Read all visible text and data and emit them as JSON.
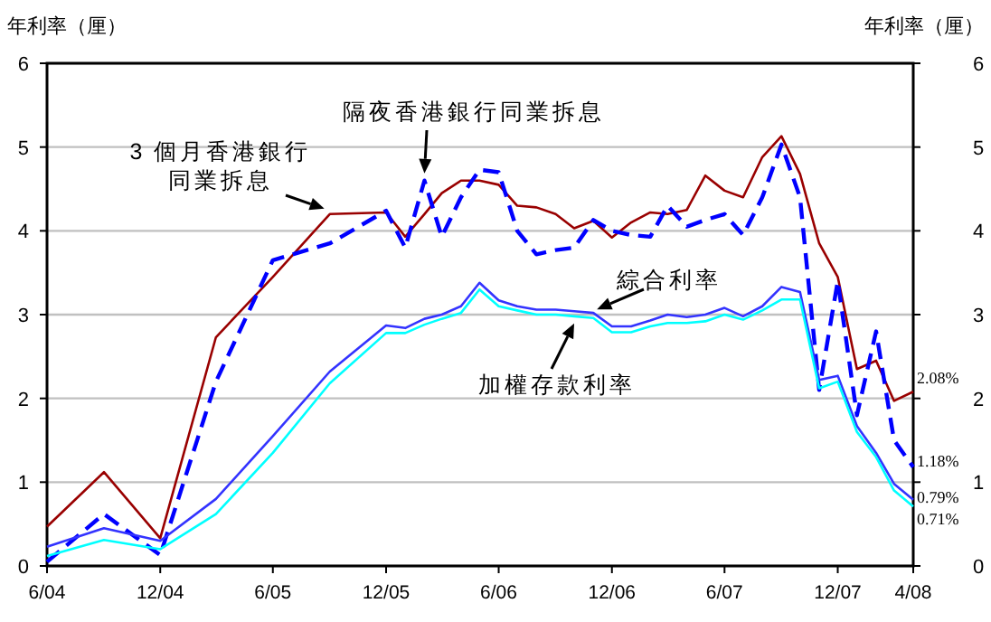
{
  "chart_data": {
    "type": "line",
    "ylabel": "年利率（厘）",
    "y2label": "年利率（厘）",
    "x": [
      "2004-06",
      "2004-09",
      "2004-12",
      "2005-03",
      "2005-06",
      "2005-09",
      "2005-12",
      "2006-01",
      "2006-02",
      "2006-03",
      "2006-04",
      "2006-05",
      "2006-06",
      "2006-07",
      "2006-08",
      "2006-09",
      "2006-10",
      "2006-11",
      "2006-12",
      "2007-01",
      "2007-02",
      "2007-03",
      "2007-04",
      "2007-05",
      "2007-06",
      "2007-07",
      "2007-08",
      "2007-09",
      "2007-10",
      "2007-11",
      "2007-12",
      "2008-01",
      "2008-02",
      "2008-03",
      "2008-04"
    ],
    "xlim": [
      "2004-06",
      "2008-04"
    ],
    "xticks": [
      {
        "value": "2004-06",
        "label": "6/04"
      },
      {
        "value": "2004-12",
        "label": "12/04"
      },
      {
        "value": "2005-06",
        "label": "6/05"
      },
      {
        "value": "2005-12",
        "label": "12/05"
      },
      {
        "value": "2006-06",
        "label": "6/06"
      },
      {
        "value": "2006-12",
        "label": "12/06"
      },
      {
        "value": "2007-06",
        "label": "6/07"
      },
      {
        "value": "2007-12",
        "label": "12/07"
      },
      {
        "value": "2008-04",
        "label": "4/08"
      }
    ],
    "ylim": [
      0,
      6
    ],
    "yticks": [
      0,
      1,
      2,
      3,
      4,
      5,
      6
    ],
    "y2lim": [
      0,
      6
    ],
    "y2ticks": [
      0,
      1,
      2,
      3,
      4,
      5,
      6
    ],
    "grid": "y",
    "marker": "none",
    "series": [
      {
        "name": "3 個月香港銀行同業拆息",
        "color": "#990000",
        "line_style": "solid",
        "values": [
          0.47,
          1.12,
          0.33,
          2.73,
          3.45,
          4.2,
          4.22,
          3.93,
          4.2,
          4.45,
          4.6,
          4.6,
          4.55,
          4.3,
          4.28,
          4.2,
          4.03,
          4.12,
          3.92,
          4.1,
          4.22,
          4.2,
          4.25,
          4.66,
          4.48,
          4.4,
          4.88,
          5.13,
          4.68,
          3.85,
          3.45,
          2.35,
          2.45,
          1.97,
          2.08
        ],
        "value_labels": [
          null,
          null,
          null,
          null,
          null,
          null,
          null,
          null,
          null,
          null,
          null,
          null,
          null,
          null,
          null,
          null,
          null,
          null,
          null,
          null,
          null,
          null,
          null,
          null,
          null,
          null,
          null,
          null,
          null,
          null,
          null,
          null,
          null,
          null,
          "2.08%"
        ]
      },
      {
        "name": "隔夜香港銀行同業拆息",
        "color": "#0000ff",
        "line_style": "dashed",
        "values": [
          0.05,
          0.62,
          0.13,
          2.2,
          3.65,
          3.85,
          4.24,
          3.8,
          4.6,
          3.93,
          4.4,
          4.73,
          4.7,
          4.0,
          3.72,
          3.77,
          3.8,
          4.13,
          4.0,
          3.95,
          3.93,
          4.3,
          4.05,
          4.13,
          4.2,
          3.95,
          4.4,
          5.03,
          4.4,
          2.1,
          3.4,
          1.8,
          2.8,
          1.5,
          1.18
        ],
        "value_labels": [
          null,
          null,
          null,
          null,
          null,
          null,
          null,
          null,
          null,
          null,
          null,
          null,
          null,
          null,
          null,
          null,
          null,
          null,
          null,
          null,
          null,
          null,
          null,
          null,
          null,
          null,
          null,
          null,
          null,
          null,
          null,
          null,
          null,
          null,
          "1.18%"
        ]
      },
      {
        "name": "綜合利率",
        "color": "#3333ff",
        "line_style": "solid",
        "values": [
          0.23,
          0.45,
          0.3,
          0.8,
          1.55,
          2.32,
          2.87,
          2.84,
          2.95,
          3.0,
          3.1,
          3.38,
          3.17,
          3.1,
          3.06,
          3.06,
          3.04,
          3.02,
          2.86,
          2.86,
          2.93,
          3.0,
          2.97,
          3.0,
          3.08,
          2.98,
          3.1,
          3.33,
          3.27,
          2.22,
          2.27,
          1.67,
          1.35,
          0.98,
          0.79
        ],
        "value_labels": [
          null,
          null,
          null,
          null,
          null,
          null,
          null,
          null,
          null,
          null,
          null,
          null,
          null,
          null,
          null,
          null,
          null,
          null,
          null,
          null,
          null,
          null,
          null,
          null,
          null,
          null,
          null,
          null,
          null,
          null,
          null,
          null,
          null,
          null,
          "0.79%"
        ]
      },
      {
        "name": "加權存款利率",
        "color": "#00ffff",
        "line_style": "solid",
        "values": [
          0.12,
          0.31,
          0.2,
          0.62,
          1.35,
          2.18,
          2.78,
          2.78,
          2.88,
          2.95,
          3.02,
          3.3,
          3.1,
          3.05,
          3.0,
          3.0,
          2.98,
          2.96,
          2.79,
          2.79,
          2.86,
          2.9,
          2.9,
          2.92,
          3.0,
          2.94,
          3.05,
          3.18,
          3.18,
          2.12,
          2.2,
          1.6,
          1.3,
          0.9,
          0.71
        ],
        "value_labels": [
          null,
          null,
          null,
          null,
          null,
          null,
          null,
          null,
          null,
          null,
          null,
          null,
          null,
          null,
          null,
          null,
          null,
          null,
          null,
          null,
          null,
          null,
          null,
          null,
          null,
          null,
          null,
          null,
          null,
          null,
          null,
          null,
          null,
          null,
          "0.71%"
        ]
      }
    ]
  }
}
